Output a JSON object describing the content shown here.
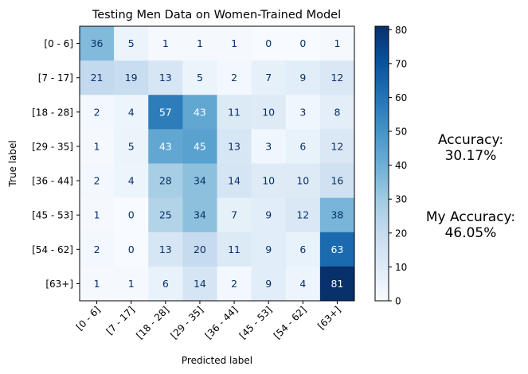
{
  "chart_data": {
    "type": "heatmap",
    "title": "Testing Men Data on Women-Trained Model",
    "xlabel": "Predicted label",
    "ylabel": "True label",
    "x_categories": [
      "[0 - 6]",
      "[7 - 17]",
      "[18 - 28]",
      "[29 - 35]",
      "[36 - 44]",
      "[45 - 53]",
      "[54 - 62]",
      "[63+]"
    ],
    "y_categories": [
      "[0 - 6]",
      "[7 - 17]",
      "[18 - 28]",
      "[29 - 35]",
      "[36 - 44]",
      "[45 - 53]",
      "[54 - 62]",
      "[63+]"
    ],
    "values": [
      [
        36,
        5,
        1,
        1,
        1,
        0,
        0,
        1
      ],
      [
        21,
        19,
        13,
        5,
        2,
        7,
        9,
        12
      ],
      [
        2,
        4,
        57,
        43,
        11,
        10,
        3,
        8
      ],
      [
        1,
        5,
        43,
        45,
        13,
        3,
        6,
        12
      ],
      [
        2,
        4,
        28,
        34,
        14,
        10,
        10,
        16
      ],
      [
        1,
        0,
        25,
        34,
        7,
        9,
        12,
        38
      ],
      [
        2,
        0,
        13,
        20,
        11,
        9,
        6,
        63
      ],
      [
        1,
        1,
        6,
        14,
        2,
        9,
        4,
        81
      ]
    ],
    "colorbar": {
      "min": 0,
      "max": 81,
      "ticks": [
        0,
        10,
        20,
        30,
        40,
        50,
        60,
        70,
        80
      ]
    },
    "colormap": "Blues",
    "grid": false
  },
  "annotations": {
    "accuracy_label": "Accuracy:",
    "accuracy_value": "30.17%",
    "my_accuracy_label": "My Accuracy:",
    "my_accuracy_value": "46.05%"
  }
}
